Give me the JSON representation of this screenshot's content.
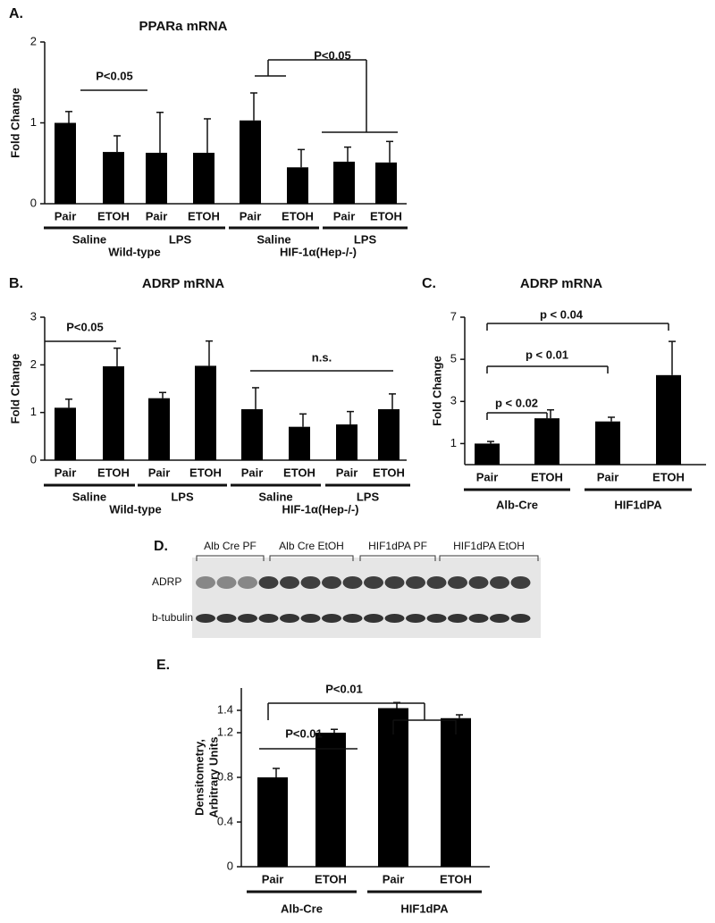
{
  "chart_data": [
    {
      "type": "bar",
      "panel": "A.",
      "title": "PPARa mRNA",
      "y_label": "Fold Change",
      "categories": [
        "Pair",
        "ETOH",
        "Pair",
        "ETOH",
        "Pair",
        "ETOH",
        "Pair",
        "ETOH"
      ],
      "values": [
        1.0,
        0.64,
        0.63,
        0.63,
        1.03,
        0.45,
        0.52,
        0.51
      ],
      "errors": [
        0.14,
        0.2,
        0.5,
        0.42,
        0.34,
        0.22,
        0.18,
        0.26
      ],
      "color": "#000000",
      "ylim": [
        0,
        2
      ],
      "yticks": [
        0,
        1,
        2
      ],
      "groups": [
        "Saline",
        "LPS",
        "Saline",
        "LPS"
      ],
      "supergroups": [
        "Wild-type",
        "HIF-1α(Hep-/-)"
      ],
      "annotations": [
        "P<0.05",
        "P<0.05"
      ]
    },
    {
      "type": "bar",
      "panel": "B.",
      "title": "ADRP mRNA",
      "y_label": "Fold Change",
      "categories": [
        "Pair",
        "ETOH",
        "Pair",
        "ETOH",
        "Pair",
        "ETOH",
        "Pair",
        "ETOH"
      ],
      "values": [
        1.1,
        1.97,
        1.3,
        1.98,
        1.07,
        0.7,
        0.75,
        1.07
      ],
      "errors": [
        0.18,
        0.38,
        0.12,
        0.52,
        0.45,
        0.27,
        0.27,
        0.32
      ],
      "color": "#000000",
      "ylim": [
        0,
        3
      ],
      "yticks": [
        0,
        1,
        2,
        3
      ],
      "groups": [
        "Saline",
        "LPS",
        "Saline",
        "LPS"
      ],
      "supergroups": [
        "Wild-type",
        "HIF-1α(Hep-/-)"
      ],
      "annotations": [
        "P<0.05",
        "n.s."
      ]
    },
    {
      "type": "bar",
      "panel": "C.",
      "title": "ADRP mRNA",
      "y_label": "Fold Change",
      "categories": [
        "Pair",
        "ETOH",
        "Pair",
        "ETOH"
      ],
      "values": [
        1.0,
        2.2,
        2.05,
        4.25
      ],
      "errors": [
        0.1,
        0.4,
        0.2,
        1.6
      ],
      "color": "#000000",
      "ylim": [
        0,
        7
      ],
      "yticks": [
        1,
        3,
        5,
        7
      ],
      "groups": [
        "Alb-Cre",
        "HIF1dPA"
      ],
      "annotations": [
        "p < 0.02",
        "p < 0.01",
        "p < 0.04"
      ]
    },
    {
      "type": "bar",
      "panel": "E.",
      "y_label": [
        "Densitometry,",
        "Arbitrary Units"
      ],
      "categories": [
        "Pair",
        "ETOH",
        "Pair",
        "ETOH"
      ],
      "values": [
        0.8,
        1.2,
        1.42,
        1.33
      ],
      "errors": [
        0.08,
        0.03,
        0.05,
        0.03
      ],
      "color": "#000000",
      "ylim": [
        0,
        1.6
      ],
      "yticks": [
        0,
        0.4,
        0.8,
        1.2,
        1.4
      ],
      "groups": [
        "Alb-Cre",
        "HIF1dPA"
      ],
      "annotations": [
        "P<0.01",
        "P<0.01"
      ]
    }
  ],
  "blot": {
    "panel": "D.",
    "lane_groups": [
      "Alb Cre PF",
      "Alb Cre EtOH",
      "HIF1dPA PF",
      "HIF1dPA EtOH"
    ],
    "rows": [
      "ADRP",
      "b-tubulin"
    ]
  }
}
